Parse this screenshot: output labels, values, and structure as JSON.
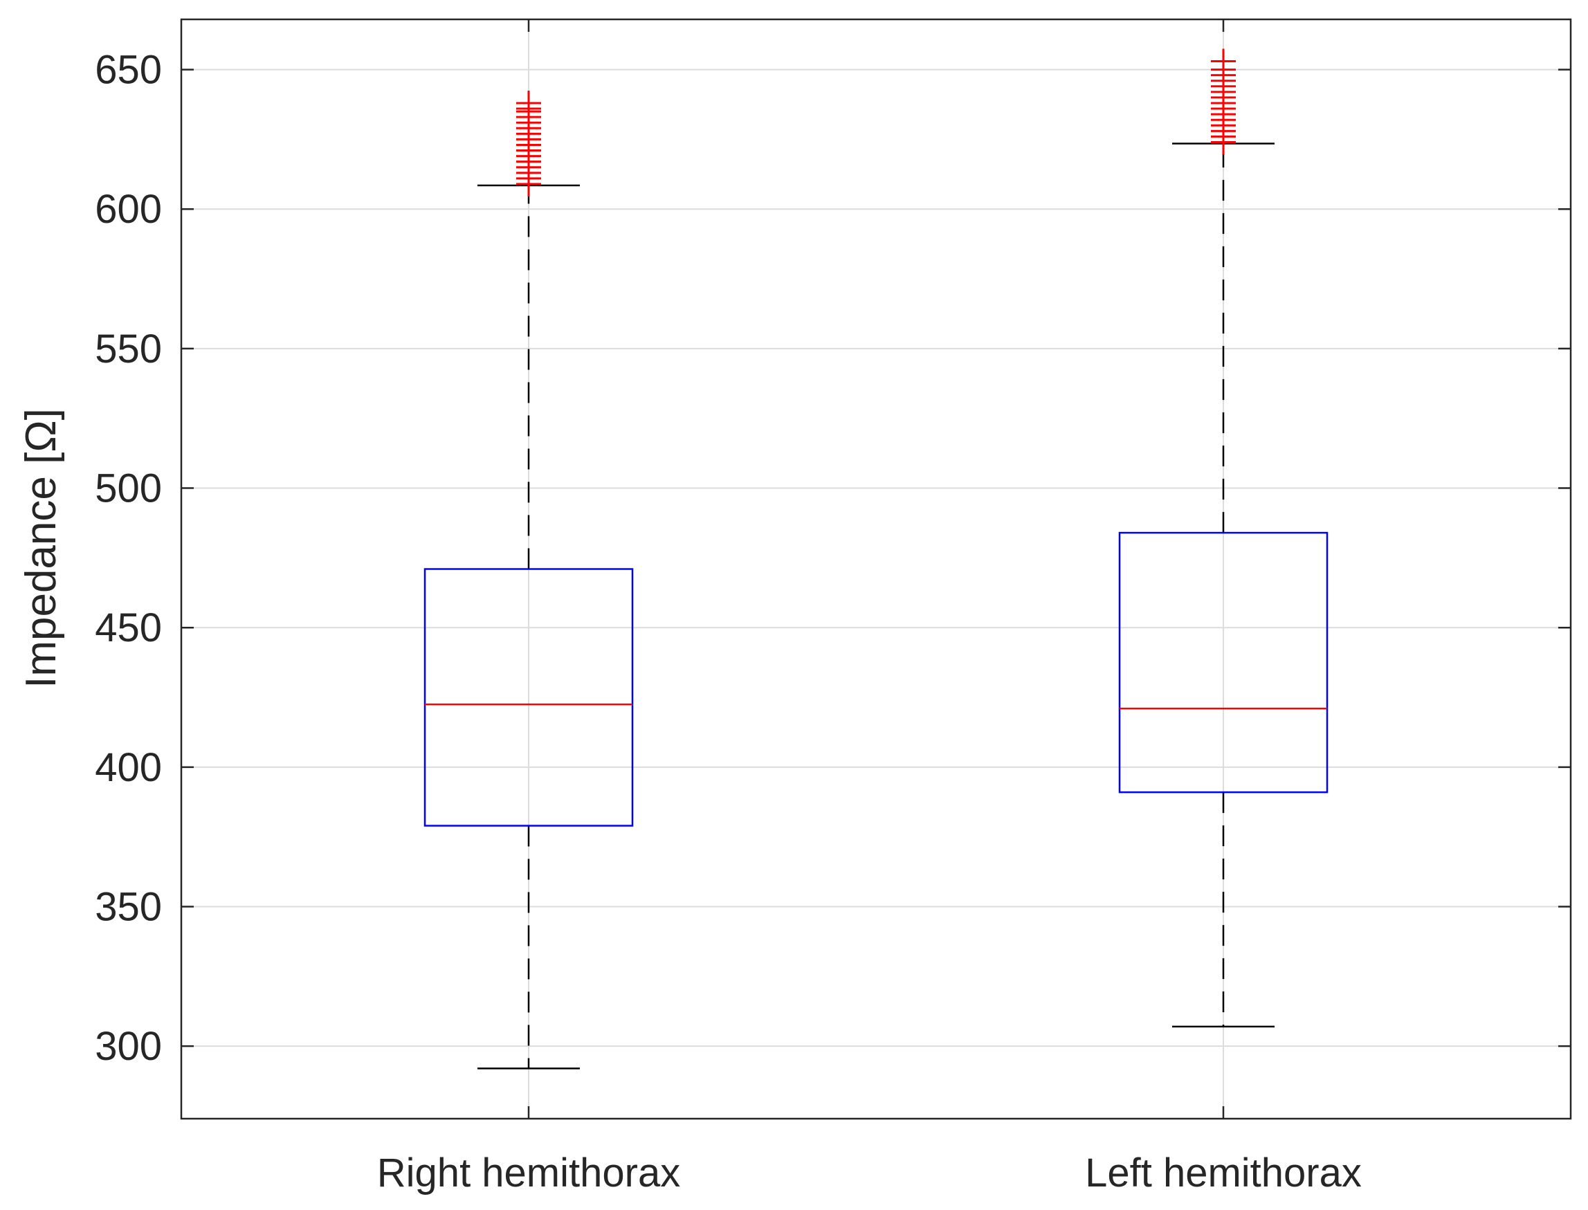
{
  "chart_data": {
    "type": "box",
    "title": "",
    "xlabel": "",
    "ylabel": "Impedance [Ω]",
    "ylim": [
      274,
      668
    ],
    "yticks": [
      300,
      350,
      400,
      450,
      500,
      550,
      600,
      650
    ],
    "ytick_labels": [
      "300",
      "350",
      "400",
      "450",
      "500",
      "550",
      "600",
      "650"
    ],
    "grid": true,
    "categories": [
      "Right hemithorax",
      "Left hemithorax"
    ],
    "boxes": [
      {
        "category": "Right hemithorax",
        "whisker_low": 292,
        "q1": 379,
        "median": 422.5,
        "q3": 471,
        "whisker_high": 608.5,
        "outliers": [
          609,
          611,
          613,
          615,
          617,
          619,
          621,
          623,
          625,
          627,
          629,
          631,
          633,
          635,
          636,
          638
        ]
      },
      {
        "category": "Left hemithorax",
        "whisker_low": 307,
        "q1": 391,
        "median": 421,
        "q3": 484,
        "whisker_high": 623.5,
        "outliers": [
          624,
          626,
          628,
          630,
          632,
          634,
          636,
          638,
          640,
          642,
          644,
          646,
          648,
          650,
          653
        ]
      }
    ],
    "colors": {
      "box": "#0000ff",
      "median": "#ff0000",
      "whisker": "#000000",
      "outlier": "#ff0000",
      "grid": "#dcdcdc",
      "axis": "#262626"
    }
  }
}
